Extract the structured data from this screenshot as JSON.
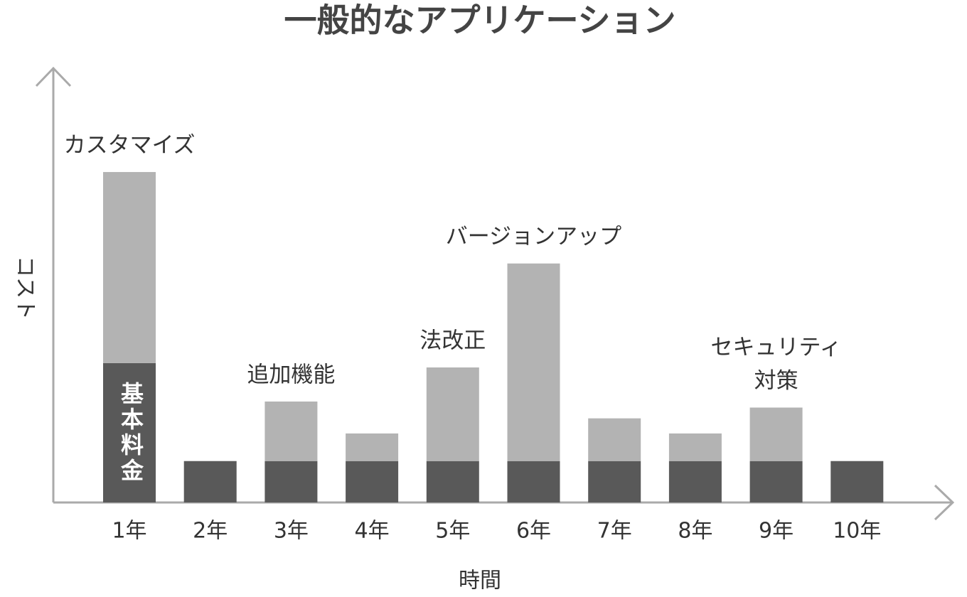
{
  "chart_data": {
    "type": "stacked-bar",
    "title": "一般的なアプリケーション",
    "x_label": "時間",
    "y_label": "コスト",
    "categories": [
      "1年",
      "2年",
      "3年",
      "4年",
      "5年",
      "6年",
      "7年",
      "8年",
      "9年",
      "10年"
    ],
    "series": [
      {
        "name": "基本料金",
        "color": "#595959",
        "values": [
          32.3,
          9.6,
          9.6,
          9.6,
          9.6,
          9.6,
          9.6,
          9.6,
          9.6,
          9.6
        ]
      },
      {
        "color": "#b3b3b3",
        "values": [
          44.3,
          0,
          13.8,
          6.4,
          21.7,
          45.8,
          9.9,
          6.4,
          12.4,
          0
        ]
      }
    ],
    "ylim": [
      0,
      100
    ],
    "annotations": [
      {
        "category": "1年",
        "lines": [
          "カスタマイズ"
        ]
      },
      {
        "category": "3年",
        "lines": [
          "追加機能"
        ]
      },
      {
        "category": "5年",
        "lines": [
          "法改正"
        ]
      },
      {
        "category": "6年",
        "lines": [
          "バージョンアップ"
        ]
      },
      {
        "category": "9年",
        "lines": [
          "セキュリティ",
          "対策"
        ]
      }
    ]
  }
}
